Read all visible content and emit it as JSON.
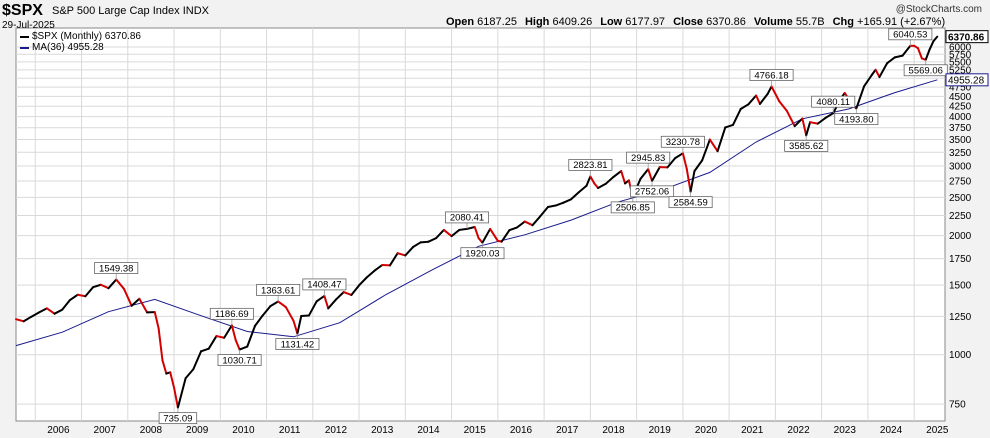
{
  "header": {
    "symbol": "$SPX",
    "description": "S&P 500 Large Cap Index",
    "exchange": "INDX",
    "date": "29-Jul-2025",
    "brand": "@StockCharts.com",
    "stats": [
      {
        "label": "Open",
        "value": "6187.25"
      },
      {
        "label": "High",
        "value": "6409.26"
      },
      {
        "label": "Low",
        "value": "6177.97"
      },
      {
        "label": "Close",
        "value": "6370.86"
      },
      {
        "label": "Volume",
        "value": "55.7B"
      },
      {
        "label": "Chg",
        "value": "+165.91 (+2.67%)"
      }
    ]
  },
  "legend": {
    "price": "$SPX (Monthly) 6370.86",
    "ma": "MA(36) 4955.28"
  },
  "colors": {
    "up": "#000000",
    "down": "#d40000",
    "ma": "#1a1a8c",
    "grid": "#d9d9d9",
    "plot_bg": "#ffffff",
    "page_bg": "#f2f2f2"
  },
  "chart_data": {
    "type": "line",
    "scale": "log",
    "ylim": [
      680,
      6700
    ],
    "xlim": [
      "2005-08",
      "2025-09"
    ],
    "y_ticks": [
      750,
      1000,
      1250,
      1500,
      1750,
      2000,
      2250,
      2500,
      2750,
      3000,
      3250,
      3500,
      3750,
      4000,
      4250,
      4500,
      4750,
      5000,
      5250,
      5500,
      5750,
      6000
    ],
    "x_ticks": [
      "2006",
      "2007",
      "2008",
      "2009",
      "2010",
      "2011",
      "2012",
      "2013",
      "2014",
      "2015",
      "2016",
      "2017",
      "2018",
      "2019",
      "2020",
      "2021",
      "2022",
      "2023",
      "2024",
      "2025"
    ],
    "series": [
      {
        "name": "$SPX (Monthly)",
        "points": [
          [
            "2005-08",
            1230
          ],
          [
            "2005-10",
            1215
          ],
          [
            "2005-12",
            1248
          ],
          [
            "2006-02",
            1280
          ],
          [
            "2006-04",
            1310
          ],
          [
            "2006-06",
            1270
          ],
          [
            "2006-08",
            1300
          ],
          [
            "2006-10",
            1375
          ],
          [
            "2006-12",
            1418
          ],
          [
            "2007-02",
            1406
          ],
          [
            "2007-04",
            1482
          ],
          [
            "2007-06",
            1503
          ],
          [
            "2007-08",
            1473
          ],
          [
            "2007-10",
            1549.38
          ],
          [
            "2007-12",
            1468
          ],
          [
            "2008-02",
            1330
          ],
          [
            "2008-04",
            1385
          ],
          [
            "2008-06",
            1280
          ],
          [
            "2008-08",
            1282
          ],
          [
            "2008-09",
            1166
          ],
          [
            "2008-10",
            968
          ],
          [
            "2008-11",
            896
          ],
          [
            "2008-12",
            903
          ],
          [
            "2009-01",
            826
          ],
          [
            "2009-02",
            735.09
          ],
          [
            "2009-04",
            872
          ],
          [
            "2009-06",
            919
          ],
          [
            "2009-08",
            1020
          ],
          [
            "2009-10",
            1036
          ],
          [
            "2009-12",
            1115
          ],
          [
            "2010-02",
            1104
          ],
          [
            "2010-04",
            1186.69
          ],
          [
            "2010-05",
            1089
          ],
          [
            "2010-06",
            1030.71
          ],
          [
            "2010-08",
            1049
          ],
          [
            "2010-10",
            1183
          ],
          [
            "2010-12",
            1257
          ],
          [
            "2011-02",
            1327
          ],
          [
            "2011-04",
            1363.61
          ],
          [
            "2011-06",
            1320
          ],
          [
            "2011-08",
            1218
          ],
          [
            "2011-09",
            1131.42
          ],
          [
            "2011-10",
            1253
          ],
          [
            "2011-12",
            1257
          ],
          [
            "2012-02",
            1365
          ],
          [
            "2012-04",
            1408.47
          ],
          [
            "2012-05",
            1310
          ],
          [
            "2012-07",
            1379
          ],
          [
            "2012-09",
            1440
          ],
          [
            "2012-11",
            1416
          ],
          [
            "2013-01",
            1498
          ],
          [
            "2013-03",
            1569
          ],
          [
            "2013-05",
            1631
          ],
          [
            "2013-07",
            1686
          ],
          [
            "2013-09",
            1682
          ],
          [
            "2013-11",
            1806
          ],
          [
            "2014-01",
            1783
          ],
          [
            "2014-03",
            1872
          ],
          [
            "2014-05",
            1924
          ],
          [
            "2014-07",
            1931
          ],
          [
            "2014-09",
            1972
          ],
          [
            "2014-11",
            2068
          ],
          [
            "2015-01",
            1995
          ],
          [
            "2015-03",
            2068
          ],
          [
            "2015-05",
            2080.41
          ],
          [
            "2015-07",
            2104
          ],
          [
            "2015-08",
            1972
          ],
          [
            "2015-09",
            1920.03
          ],
          [
            "2015-11",
            2080
          ],
          [
            "2016-01",
            1940
          ],
          [
            "2016-02",
            1932
          ],
          [
            "2016-04",
            2065
          ],
          [
            "2016-06",
            2099
          ],
          [
            "2016-08",
            2171
          ],
          [
            "2016-10",
            2126
          ],
          [
            "2016-12",
            2239
          ],
          [
            "2017-02",
            2364
          ],
          [
            "2017-04",
            2384
          ],
          [
            "2017-06",
            2423
          ],
          [
            "2017-08",
            2472
          ],
          [
            "2017-10",
            2575
          ],
          [
            "2017-12",
            2674
          ],
          [
            "2018-01",
            2823.81
          ],
          [
            "2018-02",
            2714
          ],
          [
            "2018-03",
            2640
          ],
          [
            "2018-05",
            2705
          ],
          [
            "2018-07",
            2816
          ],
          [
            "2018-09",
            2914
          ],
          [
            "2018-10",
            2711
          ],
          [
            "2018-11",
            2760
          ],
          [
            "2018-12",
            2506.85
          ],
          [
            "2019-02",
            2784
          ],
          [
            "2019-04",
            2945.83
          ],
          [
            "2019-05",
            2752.06
          ],
          [
            "2019-07",
            2980
          ],
          [
            "2019-09",
            2977
          ],
          [
            "2019-11",
            3141
          ],
          [
            "2020-01",
            3230.78
          ],
          [
            "2020-02",
            2954
          ],
          [
            "2020-03",
            2584.59
          ],
          [
            "2020-04",
            2912
          ],
          [
            "2020-06",
            3100
          ],
          [
            "2020-08",
            3500
          ],
          [
            "2020-10",
            3270
          ],
          [
            "2020-12",
            3756
          ],
          [
            "2021-02",
            3811
          ],
          [
            "2021-04",
            4181
          ],
          [
            "2021-06",
            4297
          ],
          [
            "2021-08",
            4523
          ],
          [
            "2021-09",
            4307
          ],
          [
            "2021-11",
            4567
          ],
          [
            "2021-12",
            4766.18
          ],
          [
            "2022-02",
            4374
          ],
          [
            "2022-04",
            4132
          ],
          [
            "2022-06",
            3785
          ],
          [
            "2022-08",
            3955
          ],
          [
            "2022-09",
            3585.62
          ],
          [
            "2022-10",
            3872
          ],
          [
            "2022-12",
            3840
          ],
          [
            "2023-02",
            3970
          ],
          [
            "2023-04",
            4080.11
          ],
          [
            "2023-06",
            4450
          ],
          [
            "2023-07",
            4589
          ],
          [
            "2023-09",
            4288
          ],
          [
            "2023-10",
            4193.8
          ],
          [
            "2023-12",
            4770
          ],
          [
            "2024-02",
            5096
          ],
          [
            "2024-03",
            5254
          ],
          [
            "2024-04",
            5036
          ],
          [
            "2024-06",
            5460
          ],
          [
            "2024-08",
            5648
          ],
          [
            "2024-10",
            5705
          ],
          [
            "2024-12",
            6040.53
          ],
          [
            "2025-01",
            6040
          ],
          [
            "2025-02",
            5955
          ],
          [
            "2025-03",
            5612
          ],
          [
            "2025-04",
            5569.06
          ],
          [
            "2025-05",
            5911
          ],
          [
            "2025-06",
            6205
          ],
          [
            "2025-07",
            6370.86
          ]
        ]
      },
      {
        "name": "MA(36)",
        "points": [
          [
            "2005-08",
            1055
          ],
          [
            "2006-08",
            1140
          ],
          [
            "2007-08",
            1285
          ],
          [
            "2008-08",
            1380
          ],
          [
            "2009-08",
            1255
          ],
          [
            "2010-08",
            1145
          ],
          [
            "2011-08",
            1110
          ],
          [
            "2012-08",
            1205
          ],
          [
            "2013-08",
            1420
          ],
          [
            "2014-08",
            1640
          ],
          [
            "2015-08",
            1880
          ],
          [
            "2016-08",
            2010
          ],
          [
            "2017-08",
            2190
          ],
          [
            "2018-08",
            2430
          ],
          [
            "2019-08",
            2620
          ],
          [
            "2020-08",
            2890
          ],
          [
            "2021-08",
            3450
          ],
          [
            "2022-08",
            3950
          ],
          [
            "2023-08",
            4180
          ],
          [
            "2024-08",
            4600
          ],
          [
            "2025-07",
            4955.28
          ]
        ]
      }
    ],
    "annotations": [
      {
        "x": "2007-10",
        "y": 1549.38,
        "text": "1549.38",
        "pos": "above"
      },
      {
        "x": "2009-02",
        "y": 735.09,
        "text": "735.09",
        "pos": "below"
      },
      {
        "x": "2010-04",
        "y": 1186.69,
        "text": "1186.69",
        "pos": "above"
      },
      {
        "x": "2010-06",
        "y": 1030.71,
        "text": "1030.71",
        "pos": "below"
      },
      {
        "x": "2011-04",
        "y": 1363.61,
        "text": "1363.61",
        "pos": "above"
      },
      {
        "x": "2011-09",
        "y": 1131.42,
        "text": "1131.42",
        "pos": "below"
      },
      {
        "x": "2012-04",
        "y": 1408.47,
        "text": "1408.47",
        "pos": "above"
      },
      {
        "x": "2015-05",
        "y": 2080.41,
        "text": "2080.41",
        "pos": "above"
      },
      {
        "x": "2015-09",
        "y": 1920.03,
        "text": "1920.03",
        "pos": "below"
      },
      {
        "x": "2018-01",
        "y": 2823.81,
        "text": "2823.81",
        "pos": "above"
      },
      {
        "x": "2018-12",
        "y": 2506.85,
        "text": "2506.85",
        "pos": "below"
      },
      {
        "x": "2019-04",
        "y": 2945.83,
        "text": "2945.83",
        "pos": "above"
      },
      {
        "x": "2019-05",
        "y": 2752.06,
        "text": "2752.06",
        "pos": "below"
      },
      {
        "x": "2020-01",
        "y": 3230.78,
        "text": "3230.78",
        "pos": "above"
      },
      {
        "x": "2020-03",
        "y": 2584.59,
        "text": "2584.59",
        "pos": "below"
      },
      {
        "x": "2021-12",
        "y": 4766.18,
        "text": "4766.18",
        "pos": "above"
      },
      {
        "x": "2022-09",
        "y": 3585.62,
        "text": "3585.62",
        "pos": "below"
      },
      {
        "x": "2023-04",
        "y": 4080.11,
        "text": "4080.11",
        "pos": "above"
      },
      {
        "x": "2023-10",
        "y": 4193.8,
        "text": "4193.80",
        "pos": "below"
      },
      {
        "x": "2024-12",
        "y": 6040.53,
        "text": "6040.53",
        "pos": "above"
      },
      {
        "x": "2025-04",
        "y": 5569.06,
        "text": "5569.06",
        "pos": "below"
      }
    ],
    "last_value": {
      "price": "6370.86",
      "ma": "4955.28"
    },
    "grid": true
  }
}
